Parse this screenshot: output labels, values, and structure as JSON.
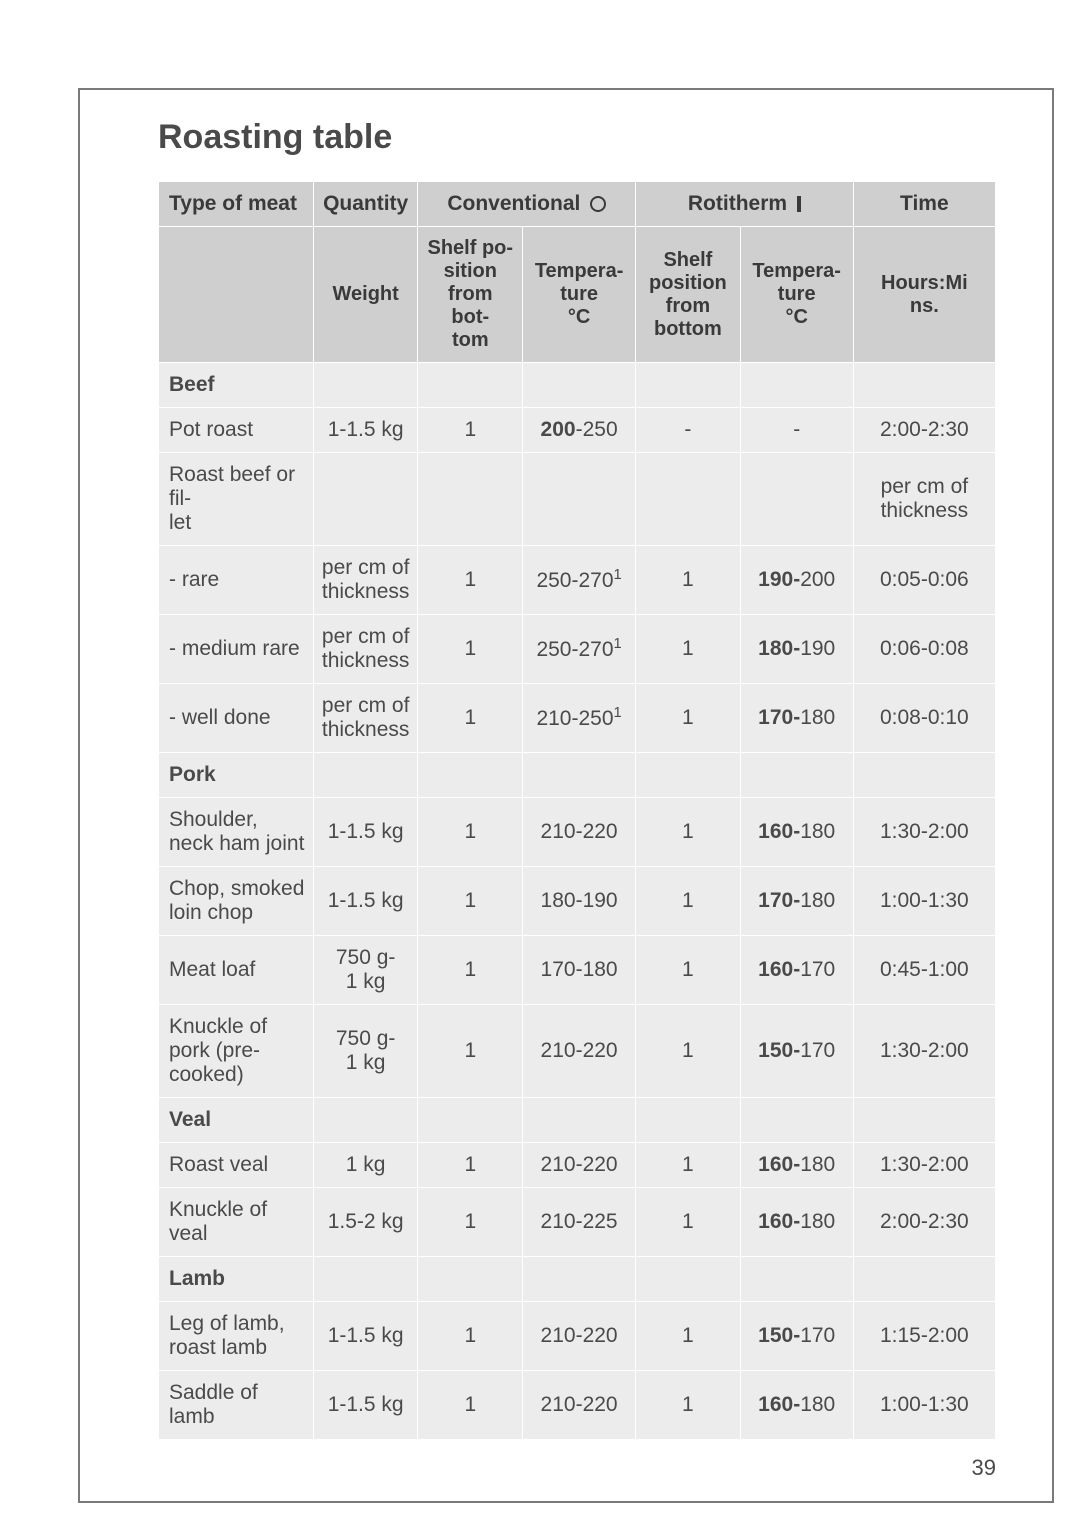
{
  "pageNumber": "39",
  "title": "Roasting table",
  "colors": {
    "header_bg": "#cfcfcf",
    "cell_bg": "#ececec",
    "border": "#ffffff",
    "text": "#4a4a4a",
    "frame": "#7a7a7a"
  },
  "typography": {
    "title_size": 34,
    "body_size": 21,
    "family": "Arial"
  },
  "headerRow1": {
    "meat": "Type of meat",
    "qty": "Quantity",
    "conv": "Conventional",
    "roti": "Rotitherm",
    "time": "Time"
  },
  "headerRow2": {
    "weight": "Weight",
    "shelf1": "Shelf po-\nsition from bot-\ntom",
    "temp1": "Tempera-\nture\n°C",
    "shelf2": "Shelf position from bottom",
    "temp2": "Tempera-\nture\n°C",
    "hours": "Hours:Mi\nns."
  },
  "sections": [
    {
      "label": "Beef",
      "rows": [
        {
          "meat": "Pot roast",
          "qty": "1-1.5 kg",
          "c1": "1",
          "c2_b": "200",
          "c2_t": "-250",
          "r1": "-",
          "r2_b": "",
          "r2_t": "-",
          "time": "2:00-2:30"
        },
        {
          "meat": "Roast beef or fil-\nlet",
          "qty": "",
          "c1": "",
          "c2_b": "",
          "c2_t": "",
          "r1": "",
          "r2_b": "",
          "r2_t": "",
          "time": "per cm of thickness"
        },
        {
          "meat": "- rare",
          "qty": "per cm of thickness",
          "c1": "1",
          "c2_b": "",
          "c2_t": "250-270",
          "sup": "1",
          "r1": "1",
          "r2_b": "190-",
          "r2_t": "200",
          "time": "0:05-0:06"
        },
        {
          "meat": "- medium rare",
          "qty": "per cm of thickness",
          "c1": "1",
          "c2_b": "",
          "c2_t": "250-270",
          "sup": "1",
          "r1": "1",
          "r2_b": "180-",
          "r2_t": "190",
          "time": "0:06-0:08"
        },
        {
          "meat": "- well done",
          "qty": "per cm of thickness",
          "c1": "1",
          "c2_b": "",
          "c2_t": "210-250",
          "sup": "1",
          "r1": "1",
          "r2_b": "170-",
          "r2_t": "180",
          "time": "0:08-0:10"
        }
      ]
    },
    {
      "label": "Pork",
      "rows": [
        {
          "meat": "Shoulder, neck ham joint",
          "qty": "1-1.5 kg",
          "c1": "1",
          "c2_b": "",
          "c2_t": "210-220",
          "r1": "1",
          "r2_b": "160-",
          "r2_t": "180",
          "time": "1:30-2:00"
        },
        {
          "meat": "Chop, smoked loin chop",
          "qty": "1-1.5 kg",
          "c1": "1",
          "c2_b": "",
          "c2_t": "180-190",
          "r1": "1",
          "r2_b": "170-",
          "r2_t": "180",
          "time": "1:00-1:30"
        },
        {
          "meat": "Meat loaf",
          "qty": "750 g-\n1 kg",
          "c1": "1",
          "c2_b": "",
          "c2_t": "170-180",
          "r1": "1",
          "r2_b": "160-",
          "r2_t": "170",
          "time": "0:45-1:00"
        },
        {
          "meat": "Knuckle of pork (pre-cooked)",
          "qty": "750 g-\n1 kg",
          "c1": "1",
          "c2_b": "",
          "c2_t": "210-220",
          "r1": "1",
          "r2_b": "150-",
          "r2_t": "170",
          "time": "1:30-2:00"
        }
      ]
    },
    {
      "label": "Veal",
      "rows": [
        {
          "meat": "Roast veal",
          "qty": "1 kg",
          "c1": "1",
          "c2_b": "",
          "c2_t": "210-220",
          "r1": "1",
          "r2_b": "160-",
          "r2_t": "180",
          "time": "1:30-2:00"
        },
        {
          "meat": "Knuckle of veal",
          "qty": "1.5-2 kg",
          "c1": "1",
          "c2_b": "",
          "c2_t": "210-225",
          "r1": "1",
          "r2_b": "160-",
          "r2_t": "180",
          "time": "2:00-2:30"
        }
      ]
    },
    {
      "label": "Lamb",
      "rows": [
        {
          "meat": "Leg of lamb, roast lamb",
          "qty": "1-1.5 kg",
          "c1": "1",
          "c2_b": "",
          "c2_t": "210-220",
          "r1": "1",
          "r2_b": "150-",
          "r2_t": "170",
          "time": "1:15-2:00"
        },
        {
          "meat": "Saddle of lamb",
          "qty": "1-1.5 kg",
          "c1": "1",
          "c2_b": "",
          "c2_t": "210-220",
          "r1": "1",
          "r2_b": "160-",
          "r2_t": "180",
          "time": "1:00-1:30"
        }
      ]
    }
  ]
}
